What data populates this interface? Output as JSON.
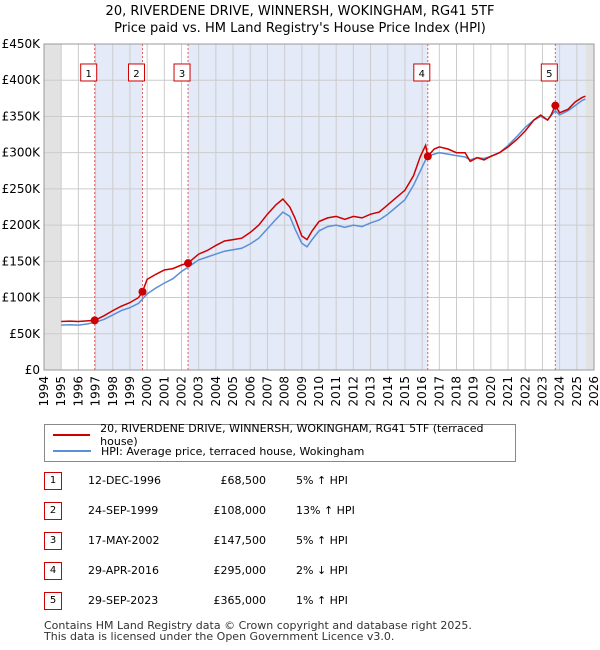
{
  "chart_data": {
    "type": "line",
    "title": "20, RIVERDENE DRIVE, WINNERSH, WOKINGHAM, RG41 5TF",
    "subtitle": "Price paid vs. HM Land Registry's House Price Index (HPI)",
    "xlim": [
      1994,
      2026
    ],
    "ylim": [
      0,
      450000
    ],
    "x_ticks": [
      "1994",
      "1995",
      "1996",
      "1997",
      "1998",
      "1999",
      "2000",
      "2001",
      "2002",
      "2003",
      "2004",
      "2005",
      "2006",
      "2007",
      "2008",
      "2009",
      "2010",
      "2011",
      "2012",
      "2013",
      "2014",
      "2015",
      "2016",
      "2017",
      "2018",
      "2019",
      "2020",
      "2021",
      "2022",
      "2023",
      "2024",
      "2025",
      "2026"
    ],
    "y_ticks": [
      {
        "value": 0,
        "label": "£0"
      },
      {
        "value": 50000,
        "label": "£50K"
      },
      {
        "value": 100000,
        "label": "£100K"
      },
      {
        "value": 150000,
        "label": "£150K"
      },
      {
        "value": 200000,
        "label": "£200K"
      },
      {
        "value": 250000,
        "label": "£250K"
      },
      {
        "value": 300000,
        "label": "£300K"
      },
      {
        "value": 350000,
        "label": "£350K"
      },
      {
        "value": 400000,
        "label": "£400K"
      },
      {
        "value": 450000,
        "label": "£450K"
      }
    ],
    "data_range": [
      1995.0,
      2025.5
    ],
    "shaded_spans": [
      [
        1994,
        1995.0
      ],
      [
        2025.5,
        2026
      ]
    ],
    "series": [
      {
        "name": "20, RIVERDENE DRIVE, WINNERSH, WOKINGHAM, RG41 5TF (terraced house)",
        "color": "#cc0000",
        "points": [
          [
            1995.0,
            67000
          ],
          [
            1995.5,
            67500
          ],
          [
            1996.0,
            67000
          ],
          [
            1996.5,
            67800
          ],
          [
            1996.95,
            68500
          ],
          [
            1997.5,
            75000
          ],
          [
            1998.0,
            82000
          ],
          [
            1998.5,
            88000
          ],
          [
            1999.0,
            93000
          ],
          [
            1999.5,
            100000
          ],
          [
            1999.73,
            108000
          ],
          [
            2000.0,
            125000
          ],
          [
            2000.5,
            132000
          ],
          [
            2001.0,
            138000
          ],
          [
            2001.5,
            140000
          ],
          [
            2002.0,
            145000
          ],
          [
            2002.38,
            147500
          ],
          [
            2003.0,
            160000
          ],
          [
            2003.5,
            165000
          ],
          [
            2004.0,
            172000
          ],
          [
            2004.5,
            178000
          ],
          [
            2005.0,
            180000
          ],
          [
            2005.5,
            182000
          ],
          [
            2006.0,
            190000
          ],
          [
            2006.5,
            200000
          ],
          [
            2007.0,
            215000
          ],
          [
            2007.5,
            228000
          ],
          [
            2007.9,
            236000
          ],
          [
            2008.3,
            225000
          ],
          [
            2008.6,
            210000
          ],
          [
            2009.0,
            185000
          ],
          [
            2009.3,
            180000
          ],
          [
            2009.6,
            192000
          ],
          [
            2010.0,
            205000
          ],
          [
            2010.5,
            210000
          ],
          [
            2011.0,
            212000
          ],
          [
            2011.5,
            208000
          ],
          [
            2012.0,
            212000
          ],
          [
            2012.5,
            210000
          ],
          [
            2013.0,
            215000
          ],
          [
            2013.5,
            218000
          ],
          [
            2014.0,
            228000
          ],
          [
            2014.5,
            238000
          ],
          [
            2015.0,
            248000
          ],
          [
            2015.5,
            268000
          ],
          [
            2015.9,
            295000
          ],
          [
            2016.2,
            310000
          ],
          [
            2016.33,
            295000
          ],
          [
            2016.7,
            305000
          ],
          [
            2017.0,
            308000
          ],
          [
            2017.5,
            305000
          ],
          [
            2018.0,
            300000
          ],
          [
            2018.5,
            300000
          ],
          [
            2018.8,
            288000
          ],
          [
            2019.2,
            293000
          ],
          [
            2019.6,
            290000
          ],
          [
            2020.0,
            295000
          ],
          [
            2020.5,
            300000
          ],
          [
            2021.0,
            308000
          ],
          [
            2021.5,
            318000
          ],
          [
            2022.0,
            330000
          ],
          [
            2022.5,
            345000
          ],
          [
            2022.9,
            352000
          ],
          [
            2023.3,
            345000
          ],
          [
            2023.5,
            352000
          ],
          [
            2023.75,
            365000
          ],
          [
            2024.0,
            355000
          ],
          [
            2024.5,
            360000
          ],
          [
            2024.9,
            370000
          ],
          [
            2025.3,
            376000
          ],
          [
            2025.5,
            378000
          ]
        ]
      },
      {
        "name": "HPI: Average price, terraced house, Wokingham",
        "color": "#5b8fd6",
        "points": [
          [
            1995.0,
            62000
          ],
          [
            1995.5,
            62500
          ],
          [
            1996.0,
            62000
          ],
          [
            1996.5,
            63500
          ],
          [
            1997.0,
            66000
          ],
          [
            1997.5,
            70000
          ],
          [
            1998.0,
            76000
          ],
          [
            1998.5,
            82000
          ],
          [
            1999.0,
            86000
          ],
          [
            1999.5,
            92000
          ],
          [
            2000.0,
            105000
          ],
          [
            2000.5,
            113000
          ],
          [
            2001.0,
            120000
          ],
          [
            2001.5,
            126000
          ],
          [
            2002.0,
            136000
          ],
          [
            2002.5,
            144000
          ],
          [
            2003.0,
            152000
          ],
          [
            2003.5,
            156000
          ],
          [
            2004.0,
            160000
          ],
          [
            2004.5,
            164000
          ],
          [
            2005.0,
            166000
          ],
          [
            2005.5,
            168000
          ],
          [
            2006.0,
            174000
          ],
          [
            2006.5,
            182000
          ],
          [
            2007.0,
            195000
          ],
          [
            2007.5,
            208000
          ],
          [
            2007.9,
            218000
          ],
          [
            2008.3,
            212000
          ],
          [
            2008.6,
            195000
          ],
          [
            2009.0,
            175000
          ],
          [
            2009.3,
            170000
          ],
          [
            2009.6,
            180000
          ],
          [
            2010.0,
            192000
          ],
          [
            2010.5,
            198000
          ],
          [
            2011.0,
            200000
          ],
          [
            2011.5,
            197000
          ],
          [
            2012.0,
            200000
          ],
          [
            2012.5,
            198000
          ],
          [
            2013.0,
            203000
          ],
          [
            2013.5,
            207000
          ],
          [
            2014.0,
            215000
          ],
          [
            2014.5,
            225000
          ],
          [
            2015.0,
            235000
          ],
          [
            2015.5,
            255000
          ],
          [
            2015.9,
            275000
          ],
          [
            2016.3,
            295000
          ],
          [
            2016.7,
            298000
          ],
          [
            2017.0,
            300000
          ],
          [
            2017.5,
            298000
          ],
          [
            2018.0,
            296000
          ],
          [
            2018.5,
            294000
          ],
          [
            2018.8,
            290000
          ],
          [
            2019.2,
            293000
          ],
          [
            2019.6,
            292000
          ],
          [
            2020.0,
            295000
          ],
          [
            2020.5,
            300000
          ],
          [
            2021.0,
            310000
          ],
          [
            2021.5,
            322000
          ],
          [
            2022.0,
            335000
          ],
          [
            2022.5,
            345000
          ],
          [
            2022.9,
            350000
          ],
          [
            2023.3,
            345000
          ],
          [
            2023.75,
            358000
          ],
          [
            2024.0,
            352000
          ],
          [
            2024.5,
            358000
          ],
          [
            2024.9,
            365000
          ],
          [
            2025.3,
            372000
          ],
          [
            2025.5,
            374000
          ]
        ]
      }
    ],
    "sales": [
      {
        "num": "1",
        "x": 1996.95,
        "price": 68500
      },
      {
        "num": "2",
        "x": 1999.73,
        "price": 108000
      },
      {
        "num": "3",
        "x": 2002.38,
        "price": 147500
      },
      {
        "num": "4",
        "x": 2016.33,
        "price": 295000
      },
      {
        "num": "5",
        "x": 2023.75,
        "price": 365000
      }
    ],
    "marker_label_value": 410000
  },
  "legend": {
    "property": "20, RIVERDENE DRIVE, WINNERSH, WOKINGHAM, RG41 5TF (terraced house)",
    "hpi": "HPI: Average price, terraced house, Wokingham",
    "property_color": "#cc0000",
    "hpi_color": "#5b8fd6"
  },
  "sales_table": [
    {
      "num": "1",
      "date": "12-DEC-1996",
      "price": "£68,500",
      "hpi": "5% ↑ HPI"
    },
    {
      "num": "2",
      "date": "24-SEP-1999",
      "price": "£108,000",
      "hpi": "13% ↑ HPI"
    },
    {
      "num": "3",
      "date": "17-MAY-2002",
      "price": "£147,500",
      "hpi": "5% ↑ HPI"
    },
    {
      "num": "4",
      "date": "29-APR-2016",
      "price": "£295,000",
      "hpi": "2% ↓ HPI"
    },
    {
      "num": "5",
      "date": "29-SEP-2023",
      "price": "£365,000",
      "hpi": "1% ↑ HPI"
    }
  ],
  "footer": {
    "line1": "Contains HM Land Registry data © Crown copyright and database right 2025.",
    "line2": "This data is licensed under the Open Government Licence v3.0."
  }
}
